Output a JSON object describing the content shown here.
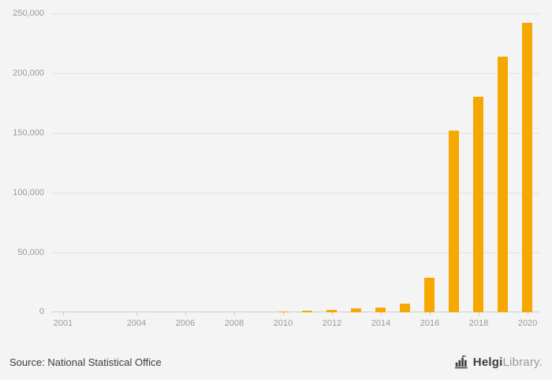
{
  "chart_data": {
    "type": "bar",
    "title": "",
    "xlabel": "",
    "ylabel": "",
    "categories": [
      "2001",
      "2002",
      "2003",
      "2004",
      "2005",
      "2006",
      "2007",
      "2008",
      "2009",
      "2010",
      "2011",
      "2012",
      "2013",
      "2014",
      "2015",
      "2016",
      "2017",
      "2018",
      "2019",
      "2020"
    ],
    "values": [
      0,
      0,
      0,
      0,
      0,
      0,
      0,
      0,
      0,
      800,
      1200,
      2200,
      3000,
      4200,
      7000,
      29000,
      152000,
      180000,
      214000,
      242000
    ],
    "ylim": [
      0,
      250000
    ],
    "yticks": [
      0,
      50000,
      100000,
      150000,
      200000,
      250000
    ],
    "ytick_labels": [
      "0",
      "50,000",
      "100,000",
      "150,000",
      "200,000",
      "250,000"
    ],
    "xtick_labels": [
      "2001",
      "2004",
      "2006",
      "2008",
      "2010",
      "2012",
      "2014",
      "2016",
      "2018",
      "2020"
    ],
    "grid": true,
    "legend": "none",
    "bar_color": "#F6A800"
  },
  "footer": {
    "source": "Source: National Statistical Office",
    "logo": {
      "brand_bold": "Helgi",
      "brand_light": "Library",
      "brand_suffix": "."
    }
  },
  "colors": {
    "background": "#f4f4f5",
    "gridline": "#e2e2e2",
    "axis": "#cfcfcf",
    "tick_label": "#9a9a9a",
    "source_text": "#3c3c3c",
    "logo_dark": "#3c3c3c",
    "logo_light": "#9a9a9a"
  }
}
